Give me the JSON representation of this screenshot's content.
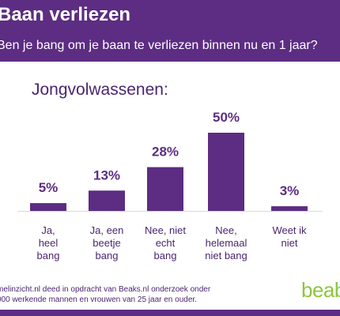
{
  "header": {
    "title": "Baan verliezen",
    "question": "Ben je bang om je baan te verliezen binnen nu en 1 jaar?"
  },
  "group_label": "Jongvolwassenen:",
  "chart_data": {
    "type": "bar",
    "title": "",
    "xlabel": "",
    "ylabel": "",
    "categories": [
      [
        "Ja,",
        "heel",
        "bang"
      ],
      [
        "Ja, een",
        "beetje",
        "bang"
      ],
      [
        "Nee, niet",
        "echt",
        "bang"
      ],
      [
        "Nee,",
        "helemaal",
        "niet bang"
      ],
      [
        "Weet ik",
        "niet"
      ]
    ],
    "values": [
      5,
      13,
      28,
      50,
      3
    ],
    "value_labels": [
      "5%",
      "13%",
      "28%",
      "50%",
      "3%"
    ],
    "ylim": [
      0,
      50
    ],
    "grid": false,
    "legend": "none",
    "bar_color": "#5c2d82"
  },
  "footnote": {
    "line1": "melinzicht.nl deed in opdracht van Beaks.nl onderzoek onder",
    "line2": "000 werkende mannen en vrouwen van 25 jaar en ouder."
  },
  "logo_text": "beab",
  "colors": {
    "brand_purple": "#5c2d82",
    "text_purple": "#4a2570",
    "logo_green": "#8cc63e"
  }
}
